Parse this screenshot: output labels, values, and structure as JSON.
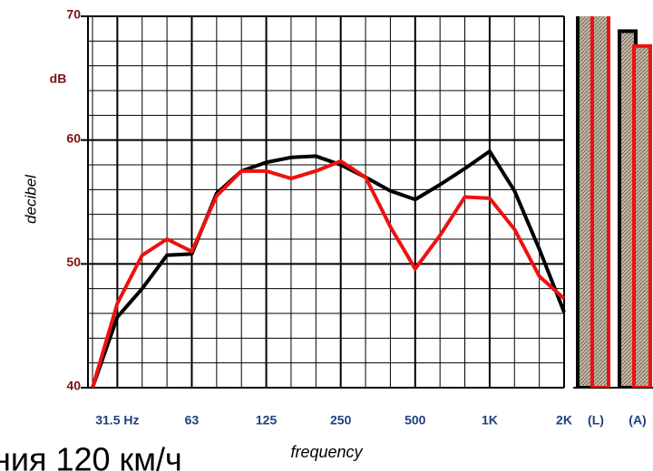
{
  "chart_data": {
    "type": "line",
    "y_label": "decibel",
    "y_unit": "dB",
    "x_label": "frequency",
    "caption_fragment": "ния 120 км/ч",
    "categories": [
      null,
      "31.5 Hz",
      null,
      null,
      "63",
      null,
      null,
      "125",
      null,
      null,
      "250",
      null,
      null,
      "500",
      null,
      null,
      "1K",
      null,
      null,
      "2K"
    ],
    "series": [
      {
        "color": "#000000",
        "values": [
          40,
          45.7,
          48.0,
          50.7,
          50.8,
          55.7,
          57.5,
          58.2,
          58.6,
          58.7,
          58.0,
          57.0,
          55.9,
          55.2,
          56.4,
          57.7,
          59.1,
          55.9,
          51.2,
          46.1
        ],
        "totals": [
          71,
          68.8
        ]
      },
      {
        "color": "#ee1111",
        "values": [
          40,
          46.8,
          50.7,
          52.0,
          51.0,
          55.5,
          57.5,
          57.5,
          56.9,
          57.5,
          58.3,
          57.0,
          53.0,
          49.6,
          52.3,
          55.4,
          55.3,
          52.8,
          49.0,
          47.2
        ],
        "totals": [
          71,
          67.6
        ]
      }
    ],
    "total_categories": [
      "(L)",
      "(A)"
    ],
    "ylim": [
      40,
      70
    ],
    "yticks": [
      40,
      50,
      60,
      70
    ],
    "y_minor_ticks": [
      42,
      44,
      46,
      48,
      52,
      54,
      56,
      58,
      62,
      64,
      66,
      68
    ],
    "grid": true
  }
}
